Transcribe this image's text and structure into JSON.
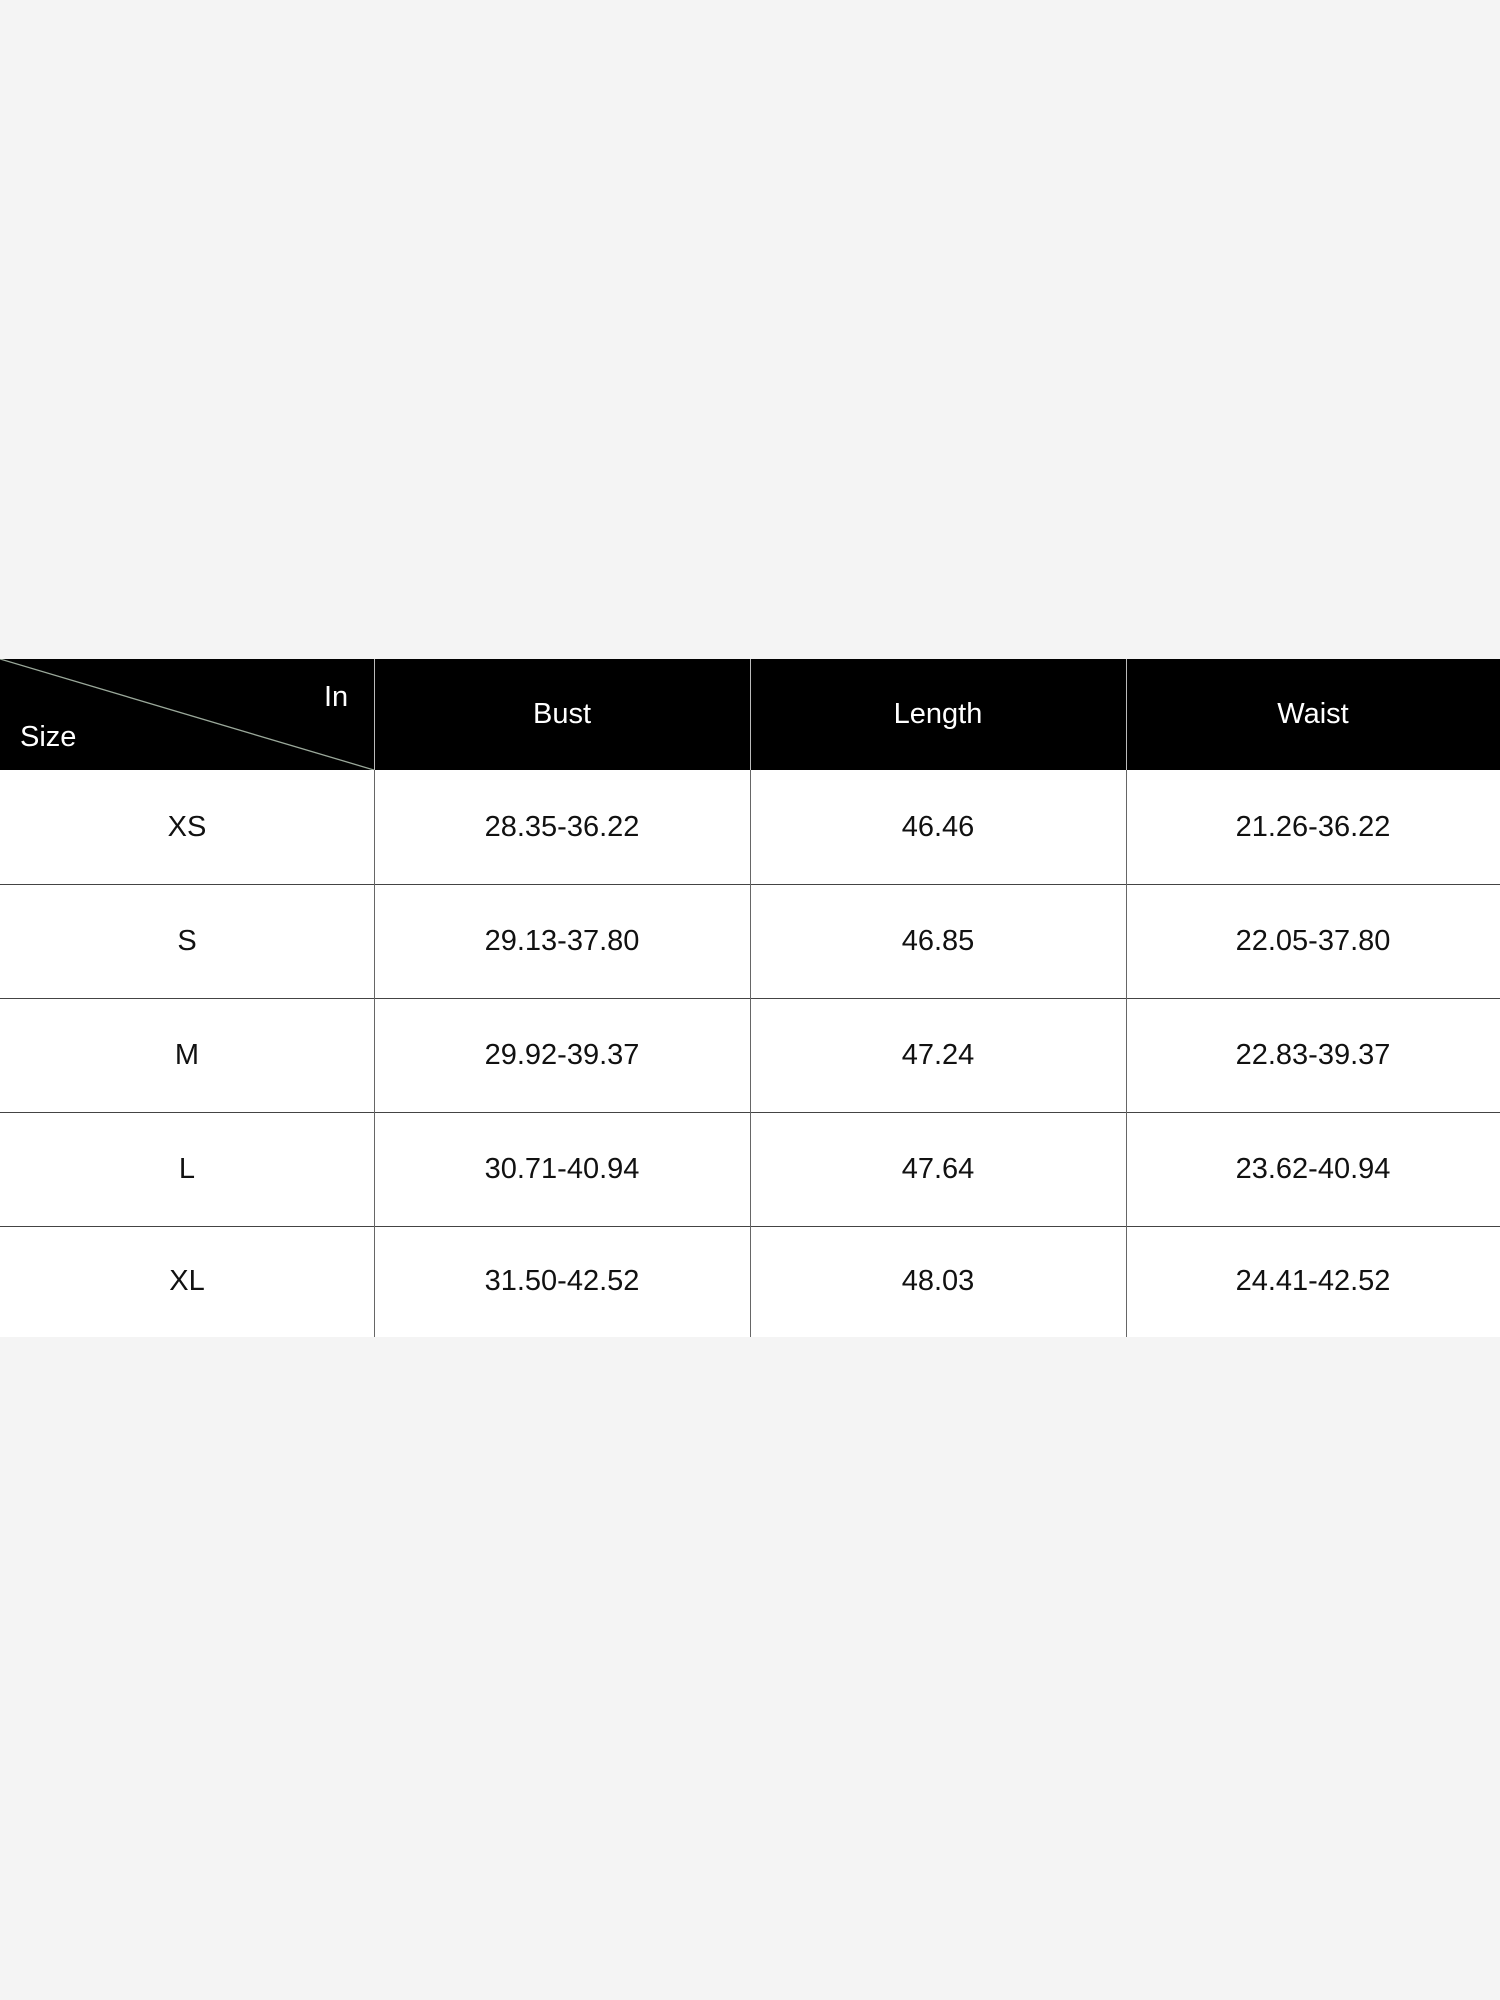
{
  "table": {
    "corner": {
      "column_label": "In",
      "row_label": "Size"
    },
    "columns": [
      "Bust",
      "Length",
      "Waist"
    ],
    "rows": [
      {
        "size": "XS",
        "values": [
          "28.35-36.22",
          "46.46",
          "21.26-36.22"
        ]
      },
      {
        "size": "S",
        "values": [
          "29.13-37.80",
          "46.85",
          "22.05-37.80"
        ]
      },
      {
        "size": "M",
        "values": [
          "29.92-39.37",
          "47.24",
          "22.83-39.37"
        ]
      },
      {
        "size": "L",
        "values": [
          "30.71-40.94",
          "47.64",
          "23.62-40.94"
        ]
      },
      {
        "size": "XL",
        "values": [
          "31.50-42.52",
          "48.03",
          "24.41-42.52"
        ]
      }
    ],
    "colors": {
      "header_bg": "#000000",
      "header_text": "#ffffff",
      "page_bg": "#f4f4f4"
    }
  }
}
